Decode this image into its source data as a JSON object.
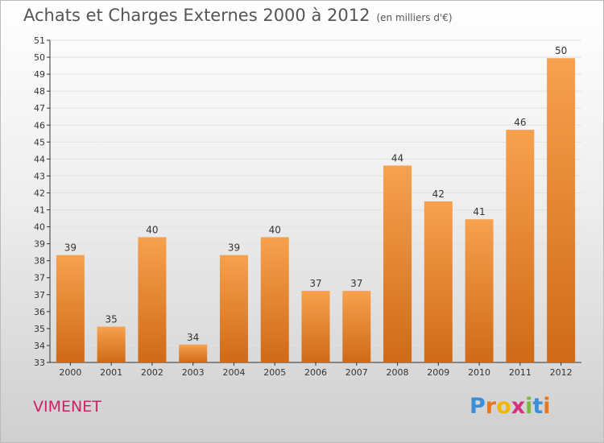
{
  "title": "Achats et Charges Externes 2000 à 2012",
  "subtitle": "(en milliers d'€)",
  "commune": "VIMENET",
  "logo": {
    "letters": [
      "P",
      "r",
      "o",
      "x",
      "i",
      "t",
      "i"
    ],
    "colors": [
      "#3a8fd6",
      "#e87722",
      "#f2b705",
      "#d62f7e",
      "#7bb83c",
      "#3a8fd6",
      "#e87722"
    ]
  },
  "colors": {
    "bar_top": "#f7a14e",
    "bar_bottom": "#cf6a17",
    "axis": "#333333",
    "grid": "#e2e2e2"
  },
  "chart_data": {
    "type": "bar",
    "title": "Achats et Charges Externes 2000 à 2012",
    "subtitle": "(en milliers d'€)",
    "categories": [
      "2000",
      "2001",
      "2002",
      "2003",
      "2004",
      "2005",
      "2006",
      "2007",
      "2008",
      "2009",
      "2010",
      "2011",
      "2012"
    ],
    "values": [
      39,
      35,
      40,
      34,
      39,
      40,
      37,
      37,
      44,
      42,
      41,
      46,
      50
    ],
    "y_ticks": [
      "33",
      "34",
      "35",
      "36",
      "37",
      "37",
      "38",
      "39",
      "40",
      "41",
      "42",
      "43",
      "44",
      "45",
      "46",
      "47",
      "48",
      "49",
      "50",
      "51"
    ],
    "ylim": [
      33,
      51
    ],
    "grid": true,
    "xlabel": "",
    "ylabel": ""
  }
}
